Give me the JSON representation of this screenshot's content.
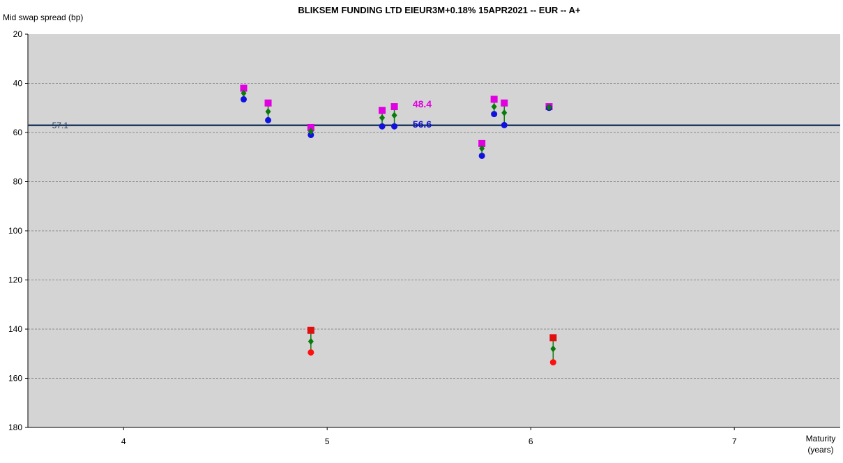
{
  "chart_data": {
    "type": "scatter",
    "title": "BLIKSEM FUNDING LTD EIEUR3M+0.18% 15APR2021 -- EUR -- A+",
    "ylabel": "Mid swap spread (bp)",
    "xlabel": "Maturity (years)",
    "xlabel_lines": [
      "Maturity",
      "(years)"
    ],
    "y_inverted": true,
    "ylim": [
      20,
      180
    ],
    "xlim": [
      3.53,
      7.52
    ],
    "yticks": [
      20,
      40,
      60,
      80,
      100,
      120,
      140,
      160,
      180
    ],
    "xticks": [
      4,
      5,
      6,
      7
    ],
    "grid": "horizontal dashed",
    "plot_background": "#d4d4d4",
    "reference_line": {
      "value": 57.1,
      "label": "57.1",
      "color": "#1f3a5f"
    },
    "annotations": [
      {
        "text": "48.4",
        "x": 5.42,
        "y": 48.4,
        "color": "#e000e0"
      },
      {
        "text": "56.6",
        "x": 5.42,
        "y": 56.6,
        "color": "#1010d0"
      }
    ],
    "bonds": [
      {
        "x": 4.59,
        "top": 42,
        "mid": 44,
        "bottom": 46.5,
        "top_color": "#e000e0",
        "bottom_color": "#1010e0"
      },
      {
        "x": 4.71,
        "top": 48,
        "mid": 51.5,
        "bottom": 55,
        "top_color": "#e000e0",
        "bottom_color": "#1010e0"
      },
      {
        "x": 4.92,
        "top": 58,
        "mid": 59.5,
        "bottom": 61,
        "top_color": "#e000e0",
        "bottom_color": "#1010e0"
      },
      {
        "x": 5.27,
        "top": 51,
        "mid": 54,
        "bottom": 57.5,
        "top_color": "#e000e0",
        "bottom_color": "#1010e0"
      },
      {
        "x": 5.33,
        "top": 49.5,
        "mid": 53,
        "bottom": 57.5,
        "top_color": "#e000e0",
        "bottom_color": "#1010e0"
      },
      {
        "x": 5.76,
        "top": 64.5,
        "mid": 66.5,
        "bottom": 69.5,
        "top_color": "#e000e0",
        "bottom_color": "#1010e0"
      },
      {
        "x": 5.82,
        "top": 46.5,
        "mid": 49.5,
        "bottom": 52.5,
        "top_color": "#e000e0",
        "bottom_color": "#1010e0"
      },
      {
        "x": 5.87,
        "top": 48,
        "mid": 52,
        "bottom": 57,
        "top_color": "#e000e0",
        "bottom_color": "#1010e0"
      },
      {
        "x": 6.09,
        "top": 49.5,
        "mid": 49.8,
        "bottom": 50,
        "top_color": "#e000e0",
        "bottom_color": "#1010e0"
      },
      {
        "x": 4.92,
        "top": 140.5,
        "mid": 145,
        "bottom": 149.5,
        "top_color": "#e01010",
        "bottom_color": "#ff1010"
      },
      {
        "x": 6.11,
        "top": 143.5,
        "mid": 148,
        "bottom": 153.5,
        "top_color": "#e01010",
        "bottom_color": "#ff1010"
      }
    ],
    "colors": {
      "mid_marker": "#0a7a0a",
      "stem": "#0a7a0a",
      "grid": "#8a8a8a",
      "axis": "#000000"
    }
  }
}
